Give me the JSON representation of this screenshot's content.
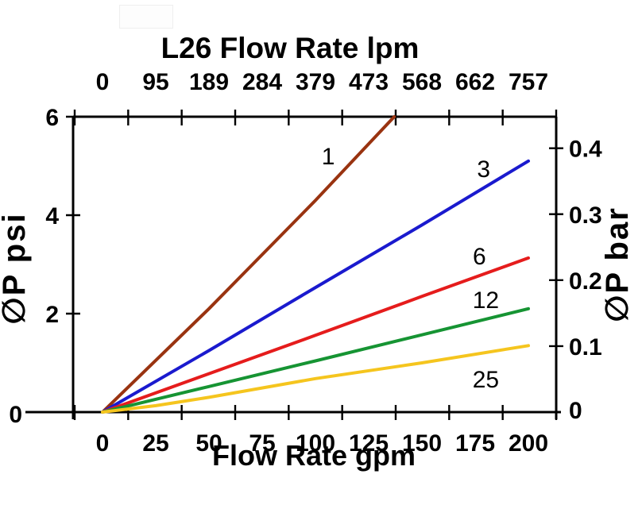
{
  "chart_data": {
    "type": "line",
    "title": "L26 Flow Rate lpm",
    "xlabel_bottom": "Flow Rate gpm",
    "ylabel_left": "∅P psi",
    "ylabel_right": "∅P bar",
    "grid": false,
    "legend_position": "none",
    "axes": {
      "bottom": {
        "unit": "gpm",
        "range": [
          0,
          200
        ],
        "ticks": [
          0,
          25,
          50,
          75,
          100,
          125,
          150,
          175,
          200
        ]
      },
      "top": {
        "unit": "lpm",
        "range": [
          0,
          757
        ],
        "ticks": [
          0,
          95,
          189,
          284,
          379,
          473,
          568,
          662,
          757
        ]
      },
      "left": {
        "unit": "psi",
        "range": [
          0,
          6
        ],
        "ticks": [
          0,
          2,
          4,
          6
        ]
      },
      "right": {
        "unit": "bar",
        "range": [
          0,
          0.45
        ],
        "ticks": [
          0,
          0.1,
          0.2,
          0.3,
          0.4
        ]
      }
    },
    "colors": {
      "axis": "#000000",
      "background": "#ffffff"
    },
    "series": [
      {
        "name": "1",
        "color": "#993310",
        "points": [
          [
            0,
            0
          ],
          [
            50,
            2.1
          ],
          [
            100,
            4.3
          ],
          [
            137,
            6.0
          ]
        ],
        "label_at": [
          106,
          5.21
        ]
      },
      {
        "name": "3",
        "color": "#1a1ace",
        "points": [
          [
            0,
            0
          ],
          [
            50,
            1.25
          ],
          [
            100,
            2.53
          ],
          [
            150,
            3.8
          ],
          [
            200,
            5.1
          ]
        ],
        "label_at": [
          179,
          4.95
        ]
      },
      {
        "name": "6",
        "color": "#e51c1c",
        "points": [
          [
            0,
            0
          ],
          [
            50,
            0.78
          ],
          [
            100,
            1.56
          ],
          [
            150,
            2.35
          ],
          [
            200,
            3.13
          ]
        ],
        "label_at": [
          177,
          3.18
        ]
      },
      {
        "name": "12",
        "color": "#169433",
        "points": [
          [
            0,
            0
          ],
          [
            50,
            0.52
          ],
          [
            100,
            1.04
          ],
          [
            150,
            1.57
          ],
          [
            200,
            2.1
          ]
        ],
        "label_at": [
          180,
          2.29
        ]
      },
      {
        "name": "25",
        "color": "#f5c51e",
        "points": [
          [
            0,
            0
          ],
          [
            25,
            0.13
          ],
          [
            50,
            0.3
          ],
          [
            100,
            0.68
          ],
          [
            150,
            1.0
          ],
          [
            200,
            1.35
          ]
        ],
        "label_at": [
          180,
          0.68
        ]
      }
    ]
  }
}
